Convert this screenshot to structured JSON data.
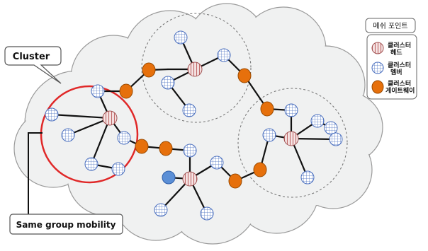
{
  "callouts": {
    "cluster": "Cluster",
    "mobility": "Same group mobility"
  },
  "legend": {
    "title": "메쉬 포인트",
    "items": [
      {
        "kind": "head",
        "label_line1": "클러스터",
        "label_line2": "헤드"
      },
      {
        "kind": "member",
        "label_line1": "클러스터",
        "label_line2": "멤버"
      },
      {
        "kind": "gateway",
        "label_line1": "클러스터",
        "label_line2": "게이트웨이"
      }
    ]
  },
  "colors": {
    "cloud_fill": "#f0f1f1",
    "cloud_stroke": "#9a9a9a",
    "member_fill": "#ffffff",
    "member_grid": "#4a6fbf",
    "head_fill": "#f4e4e4",
    "head_stripe": "#c06a6a",
    "gateway_fill": "#e6700c",
    "gateway_stroke": "#9a4a00",
    "special_fill": "#5b8fd6",
    "cluster_ring": "#e02828",
    "dashed_ring": "#707070",
    "link": "#111111"
  }
}
